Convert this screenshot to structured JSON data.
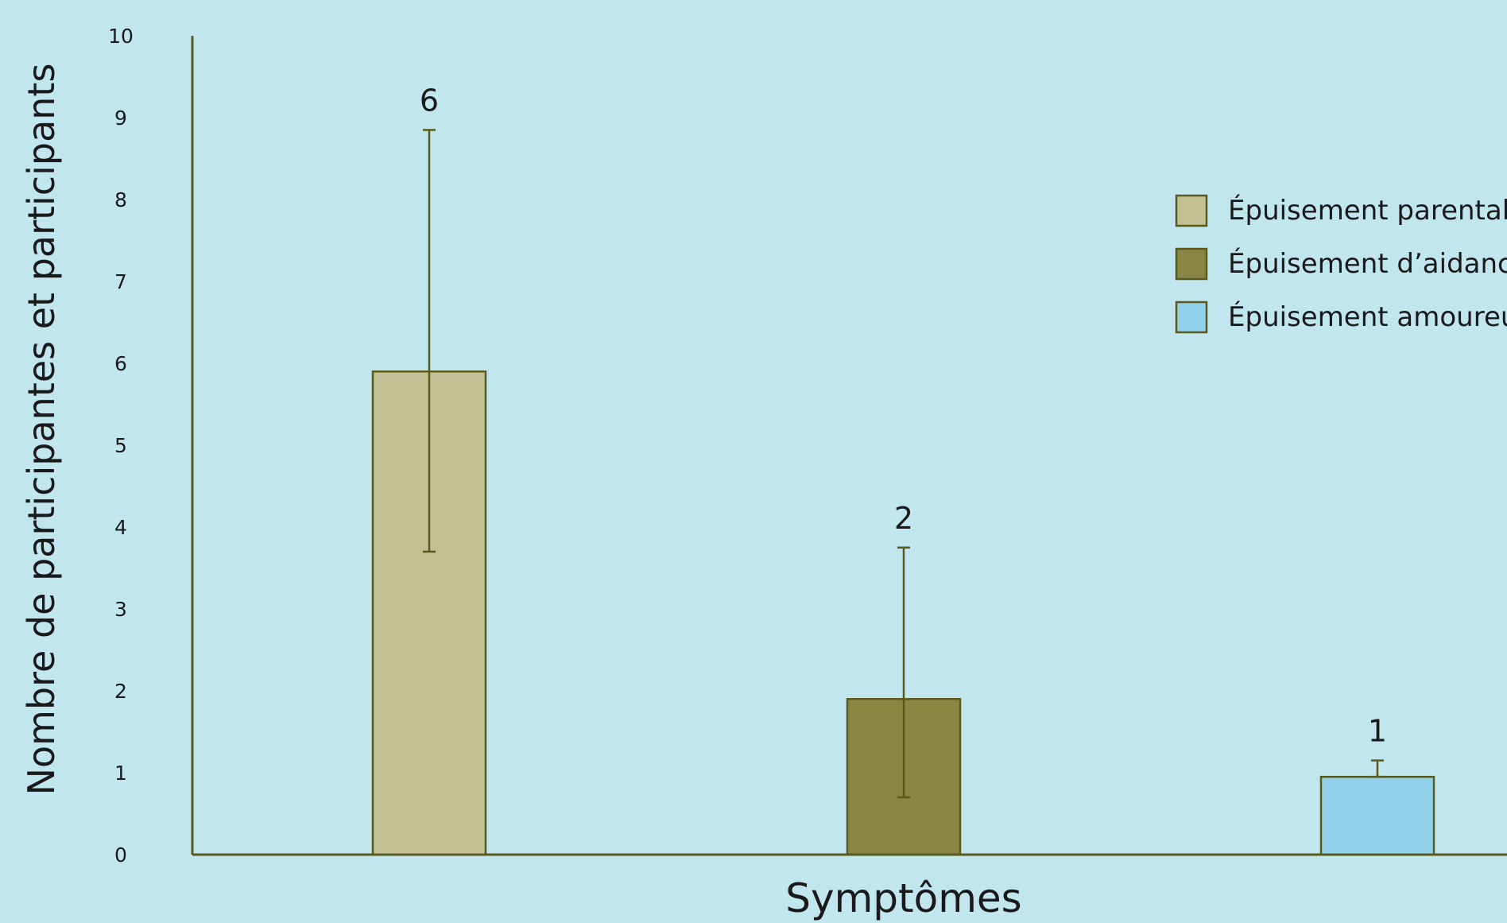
{
  "chart_data": {
    "type": "bar",
    "categories": [
      "Épuisement parental",
      "Épuisement d’aidance",
      "Épuisement amoureux"
    ],
    "values": [
      6,
      2,
      1
    ],
    "bar_heights": [
      5.9,
      1.9,
      0.95
    ],
    "error_bars": [
      {
        "low": 3.7,
        "high": 8.85
      },
      {
        "low": 0.7,
        "high": 3.75
      },
      {
        "low": 0.95,
        "high": 1.15
      }
    ],
    "data_labels": [
      "6",
      "2",
      "1"
    ],
    "colors": [
      "#c3c193",
      "#8a8644",
      "#93d1ea"
    ],
    "axis_color": "#5a5a1e",
    "xlabel": "Symptômes",
    "ylabel": "Nombre de participantes et participants",
    "ylim": [
      0,
      10
    ],
    "yticks": [
      "0",
      "1",
      "2",
      "3",
      "4",
      "5",
      "6",
      "7",
      "8",
      "9",
      "10"
    ],
    "legend": {
      "position": "top-right",
      "entries": [
        "Épuisement parental",
        "Épuisement d’aidance",
        "Épuisement amoureux"
      ]
    },
    "grid": false
  }
}
